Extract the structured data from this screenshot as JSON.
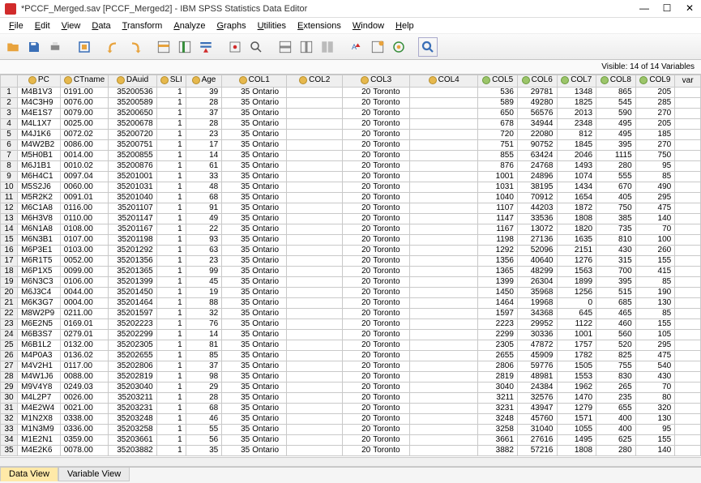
{
  "window": {
    "title": "*PCCF_Merged.sav [PCCF_Merged2] - IBM SPSS Statistics Data Editor"
  },
  "menu": [
    "File",
    "Edit",
    "View",
    "Data",
    "Transform",
    "Analyze",
    "Graphs",
    "Utilities",
    "Extensions",
    "Window",
    "Help"
  ],
  "visible_label": "Visible: 14 of 14 Variables",
  "tabs": {
    "data_view": "Data View",
    "var_view": "Variable View"
  },
  "columns": [
    {
      "key": "PC",
      "label": "PC",
      "type": "nom",
      "width": 55,
      "align": "txt"
    },
    {
      "key": "CTname",
      "label": "CTname",
      "type": "nom",
      "width": 60,
      "align": "txt"
    },
    {
      "key": "DAuid",
      "label": "DAuid",
      "type": "nom",
      "width": 65,
      "align": "num"
    },
    {
      "key": "SLI",
      "label": "SLI",
      "type": "nom",
      "width": 30,
      "align": "num"
    },
    {
      "key": "Age",
      "label": "Age",
      "type": "nom",
      "width": 50,
      "align": "num"
    },
    {
      "key": "COL1",
      "label": "COL1",
      "type": "nom",
      "width": 85,
      "align": "txt"
    },
    {
      "key": "COL2",
      "label": "COL2",
      "type": "nom",
      "width": 90,
      "align": "num"
    },
    {
      "key": "COL3",
      "label": "COL3",
      "type": "nom",
      "width": 90,
      "align": "txt"
    },
    {
      "key": "COL4",
      "label": "COL4",
      "type": "nom",
      "width": 120,
      "align": "num"
    },
    {
      "key": "COL5",
      "label": "COL5",
      "type": "scale",
      "width": 50,
      "align": "num"
    },
    {
      "key": "COL6",
      "label": "COL6",
      "type": "scale",
      "width": 50,
      "align": "num"
    },
    {
      "key": "COL7",
      "label": "COL7",
      "type": "scale",
      "width": 50,
      "align": "num"
    },
    {
      "key": "COL8",
      "label": "COL8",
      "type": "scale",
      "width": 50,
      "align": "num"
    },
    {
      "key": "COL9",
      "label": "COL9",
      "type": "scale",
      "width": 50,
      "align": "num"
    },
    {
      "key": "var",
      "label": "var",
      "type": "",
      "width": 40,
      "align": "txt"
    }
  ],
  "rows": [
    {
      "PC": "M4B1V3",
      "CTname": "0191.00",
      "DAuid": "35200536",
      "SLI": "1",
      "Age": "39",
      "COL1": "35 Ontario",
      "COL2": "",
      "COL3": "20 Toronto",
      "COL4": "",
      "COL5": "536",
      "COL6": "29781",
      "COL7": "1348",
      "COL8": "865",
      "COL9": "205"
    },
    {
      "PC": "M4C3H9",
      "CTname": "0076.00",
      "DAuid": "35200589",
      "SLI": "1",
      "Age": "28",
      "COL1": "35 Ontario",
      "COL2": "",
      "COL3": "20 Toronto",
      "COL4": "",
      "COL5": "589",
      "COL6": "49280",
      "COL7": "1825",
      "COL8": "545",
      "COL9": "285"
    },
    {
      "PC": "M4E1S7",
      "CTname": "0079.00",
      "DAuid": "35200650",
      "SLI": "1",
      "Age": "37",
      "COL1": "35 Ontario",
      "COL2": "",
      "COL3": "20 Toronto",
      "COL4": "",
      "COL5": "650",
      "COL6": "56576",
      "COL7": "2013",
      "COL8": "590",
      "COL9": "270"
    },
    {
      "PC": "M4L1X7",
      "CTname": "0025.00",
      "DAuid": "35200678",
      "SLI": "1",
      "Age": "28",
      "COL1": "35 Ontario",
      "COL2": "",
      "COL3": "20 Toronto",
      "COL4": "",
      "COL5": "678",
      "COL6": "34944",
      "COL7": "2348",
      "COL8": "495",
      "COL9": "205"
    },
    {
      "PC": "M4J1K6",
      "CTname": "0072.02",
      "DAuid": "35200720",
      "SLI": "1",
      "Age": "23",
      "COL1": "35 Ontario",
      "COL2": "",
      "COL3": "20 Toronto",
      "COL4": "",
      "COL5": "720",
      "COL6": "22080",
      "COL7": "812",
      "COL8": "495",
      "COL9": "185"
    },
    {
      "PC": "M4W2B2",
      "CTname": "0086.00",
      "DAuid": "35200751",
      "SLI": "1",
      "Age": "17",
      "COL1": "35 Ontario",
      "COL2": "",
      "COL3": "20 Toronto",
      "COL4": "",
      "COL5": "751",
      "COL6": "90752",
      "COL7": "1845",
      "COL8": "395",
      "COL9": "270"
    },
    {
      "PC": "M5H0B1",
      "CTname": "0014.00",
      "DAuid": "35200855",
      "SLI": "1",
      "Age": "14",
      "COL1": "35 Ontario",
      "COL2": "",
      "COL3": "20 Toronto",
      "COL4": "",
      "COL5": "855",
      "COL6": "63424",
      "COL7": "2046",
      "COL8": "1115",
      "COL9": "750"
    },
    {
      "PC": "M6J1B1",
      "CTname": "0010.02",
      "DAuid": "35200876",
      "SLI": "1",
      "Age": "61",
      "COL1": "35 Ontario",
      "COL2": "",
      "COL3": "20 Toronto",
      "COL4": "",
      "COL5": "876",
      "COL6": "24768",
      "COL7": "1493",
      "COL8": "280",
      "COL9": "95"
    },
    {
      "PC": "M6H4C1",
      "CTname": "0097.04",
      "DAuid": "35201001",
      "SLI": "1",
      "Age": "33",
      "COL1": "35 Ontario",
      "COL2": "",
      "COL3": "20 Toronto",
      "COL4": "",
      "COL5": "1001",
      "COL6": "24896",
      "COL7": "1074",
      "COL8": "555",
      "COL9": "85"
    },
    {
      "PC": "M5S2J6",
      "CTname": "0060.00",
      "DAuid": "35201031",
      "SLI": "1",
      "Age": "48",
      "COL1": "35 Ontario",
      "COL2": "",
      "COL3": "20 Toronto",
      "COL4": "",
      "COL5": "1031",
      "COL6": "38195",
      "COL7": "1434",
      "COL8": "670",
      "COL9": "490"
    },
    {
      "PC": "M5R2K2",
      "CTname": "0091.01",
      "DAuid": "35201040",
      "SLI": "1",
      "Age": "68",
      "COL1": "35 Ontario",
      "COL2": "",
      "COL3": "20 Toronto",
      "COL4": "",
      "COL5": "1040",
      "COL6": "70912",
      "COL7": "1654",
      "COL8": "405",
      "COL9": "295"
    },
    {
      "PC": "M6C1A8",
      "CTname": "0116.00",
      "DAuid": "35201107",
      "SLI": "1",
      "Age": "91",
      "COL1": "35 Ontario",
      "COL2": "",
      "COL3": "20 Toronto",
      "COL4": "",
      "COL5": "1107",
      "COL6": "44203",
      "COL7": "1872",
      "COL8": "750",
      "COL9": "475"
    },
    {
      "PC": "M6H3V8",
      "CTname": "0110.00",
      "DAuid": "35201147",
      "SLI": "1",
      "Age": "49",
      "COL1": "35 Ontario",
      "COL2": "",
      "COL3": "20 Toronto",
      "COL4": "",
      "COL5": "1147",
      "COL6": "33536",
      "COL7": "1808",
      "COL8": "385",
      "COL9": "140"
    },
    {
      "PC": "M6N1A8",
      "CTname": "0108.00",
      "DAuid": "35201167",
      "SLI": "1",
      "Age": "22",
      "COL1": "35 Ontario",
      "COL2": "",
      "COL3": "20 Toronto",
      "COL4": "",
      "COL5": "1167",
      "COL6": "13072",
      "COL7": "1820",
      "COL8": "735",
      "COL9": "70"
    },
    {
      "PC": "M6N3B1",
      "CTname": "0107.00",
      "DAuid": "35201198",
      "SLI": "1",
      "Age": "93",
      "COL1": "35 Ontario",
      "COL2": "",
      "COL3": "20 Toronto",
      "COL4": "",
      "COL5": "1198",
      "COL6": "27136",
      "COL7": "1635",
      "COL8": "810",
      "COL9": "100"
    },
    {
      "PC": "M6P3E1",
      "CTname": "0103.00",
      "DAuid": "35201292",
      "SLI": "1",
      "Age": "63",
      "COL1": "35 Ontario",
      "COL2": "",
      "COL3": "20 Toronto",
      "COL4": "",
      "COL5": "1292",
      "COL6": "52096",
      "COL7": "2151",
      "COL8": "430",
      "COL9": "260"
    },
    {
      "PC": "M6R1T5",
      "CTname": "0052.00",
      "DAuid": "35201356",
      "SLI": "1",
      "Age": "23",
      "COL1": "35 Ontario",
      "COL2": "",
      "COL3": "20 Toronto",
      "COL4": "",
      "COL5": "1356",
      "COL6": "40640",
      "COL7": "1276",
      "COL8": "315",
      "COL9": "155"
    },
    {
      "PC": "M6P1X5",
      "CTname": "0099.00",
      "DAuid": "35201365",
      "SLI": "1",
      "Age": "99",
      "COL1": "35 Ontario",
      "COL2": "",
      "COL3": "20 Toronto",
      "COL4": "",
      "COL5": "1365",
      "COL6": "48299",
      "COL7": "1563",
      "COL8": "700",
      "COL9": "415"
    },
    {
      "PC": "M6N3C3",
      "CTname": "0106.00",
      "DAuid": "35201399",
      "SLI": "1",
      "Age": "45",
      "COL1": "35 Ontario",
      "COL2": "",
      "COL3": "20 Toronto",
      "COL4": "",
      "COL5": "1399",
      "COL6": "26304",
      "COL7": "1899",
      "COL8": "395",
      "COL9": "85"
    },
    {
      "PC": "M6J3C4",
      "CTname": "0044.00",
      "DAuid": "35201450",
      "SLI": "1",
      "Age": "19",
      "COL1": "35 Ontario",
      "COL2": "",
      "COL3": "20 Toronto",
      "COL4": "",
      "COL5": "1450",
      "COL6": "35968",
      "COL7": "1256",
      "COL8": "515",
      "COL9": "190"
    },
    {
      "PC": "M6K3G7",
      "CTname": "0004.00",
      "DAuid": "35201464",
      "SLI": "1",
      "Age": "88",
      "COL1": "35 Ontario",
      "COL2": "",
      "COL3": "20 Toronto",
      "COL4": "",
      "COL5": "1464",
      "COL6": "19968",
      "COL7": "0",
      "COL8": "685",
      "COL9": "130"
    },
    {
      "PC": "M8W2P9",
      "CTname": "0211.00",
      "DAuid": "35201597",
      "SLI": "1",
      "Age": "32",
      "COL1": "35 Ontario",
      "COL2": "",
      "COL3": "20 Toronto",
      "COL4": "",
      "COL5": "1597",
      "COL6": "34368",
      "COL7": "645",
      "COL8": "465",
      "COL9": "85"
    },
    {
      "PC": "M6E2N5",
      "CTname": "0169.01",
      "DAuid": "35202223",
      "SLI": "1",
      "Age": "76",
      "COL1": "35 Ontario",
      "COL2": "",
      "COL3": "20 Toronto",
      "COL4": "",
      "COL5": "2223",
      "COL6": "29952",
      "COL7": "1122",
      "COL8": "460",
      "COL9": "155"
    },
    {
      "PC": "M6B3S7",
      "CTname": "0279.01",
      "DAuid": "35202299",
      "SLI": "1",
      "Age": "14",
      "COL1": "35 Ontario",
      "COL2": "",
      "COL3": "20 Toronto",
      "COL4": "",
      "COL5": "2299",
      "COL6": "30336",
      "COL7": "1001",
      "COL8": "560",
      "COL9": "105"
    },
    {
      "PC": "M6B1L2",
      "CTname": "0132.00",
      "DAuid": "35202305",
      "SLI": "1",
      "Age": "81",
      "COL1": "35 Ontario",
      "COL2": "",
      "COL3": "20 Toronto",
      "COL4": "",
      "COL5": "2305",
      "COL6": "47872",
      "COL7": "1757",
      "COL8": "520",
      "COL9": "295"
    },
    {
      "PC": "M4P0A3",
      "CTname": "0136.02",
      "DAuid": "35202655",
      "SLI": "1",
      "Age": "85",
      "COL1": "35 Ontario",
      "COL2": "",
      "COL3": "20 Toronto",
      "COL4": "",
      "COL5": "2655",
      "COL6": "45909",
      "COL7": "1782",
      "COL8": "825",
      "COL9": "475"
    },
    {
      "PC": "M4V2H1",
      "CTname": "0117.00",
      "DAuid": "35202806",
      "SLI": "1",
      "Age": "37",
      "COL1": "35 Ontario",
      "COL2": "",
      "COL3": "20 Toronto",
      "COL4": "",
      "COL5": "2806",
      "COL6": "59776",
      "COL7": "1505",
      "COL8": "755",
      "COL9": "540"
    },
    {
      "PC": "M4W1J6",
      "CTname": "0088.00",
      "DAuid": "35202819",
      "SLI": "1",
      "Age": "98",
      "COL1": "35 Ontario",
      "COL2": "",
      "COL3": "20 Toronto",
      "COL4": "",
      "COL5": "2819",
      "COL6": "48981",
      "COL7": "1553",
      "COL8": "830",
      "COL9": "430"
    },
    {
      "PC": "M9V4Y8",
      "CTname": "0249.03",
      "DAuid": "35203040",
      "SLI": "1",
      "Age": "29",
      "COL1": "35 Ontario",
      "COL2": "",
      "COL3": "20 Toronto",
      "COL4": "",
      "COL5": "3040",
      "COL6": "24384",
      "COL7": "1962",
      "COL8": "265",
      "COL9": "70"
    },
    {
      "PC": "M4L2P7",
      "CTname": "0026.00",
      "DAuid": "35203211",
      "SLI": "1",
      "Age": "28",
      "COL1": "35 Ontario",
      "COL2": "",
      "COL3": "20 Toronto",
      "COL4": "",
      "COL5": "3211",
      "COL6": "32576",
      "COL7": "1470",
      "COL8": "235",
      "COL9": "80"
    },
    {
      "PC": "M4E2W4",
      "CTname": "0021.00",
      "DAuid": "35203231",
      "SLI": "1",
      "Age": "68",
      "COL1": "35 Ontario",
      "COL2": "",
      "COL3": "20 Toronto",
      "COL4": "",
      "COL5": "3231",
      "COL6": "43947",
      "COL7": "1279",
      "COL8": "655",
      "COL9": "320"
    },
    {
      "PC": "M1N2X8",
      "CTname": "0338.00",
      "DAuid": "35203248",
      "SLI": "1",
      "Age": "46",
      "COL1": "35 Ontario",
      "COL2": "",
      "COL3": "20 Toronto",
      "COL4": "",
      "COL5": "3248",
      "COL6": "45760",
      "COL7": "1571",
      "COL8": "400",
      "COL9": "130"
    },
    {
      "PC": "M1N3M9",
      "CTname": "0336.00",
      "DAuid": "35203258",
      "SLI": "1",
      "Age": "55",
      "COL1": "35 Ontario",
      "COL2": "",
      "COL3": "20 Toronto",
      "COL4": "",
      "COL5": "3258",
      "COL6": "31040",
      "COL7": "1055",
      "COL8": "400",
      "COL9": "95"
    },
    {
      "PC": "M1E2N1",
      "CTname": "0359.00",
      "DAuid": "35203661",
      "SLI": "1",
      "Age": "56",
      "COL1": "35 Ontario",
      "COL2": "",
      "COL3": "20 Toronto",
      "COL4": "",
      "COL5": "3661",
      "COL6": "27616",
      "COL7": "1495",
      "COL8": "625",
      "COL9": "155"
    },
    {
      "PC": "M4E2K6",
      "CTname": "0078.00",
      "DAuid": "35203882",
      "SLI": "1",
      "Age": "35",
      "COL1": "35 Ontario",
      "COL2": "",
      "COL3": "20 Toronto",
      "COL4": "",
      "COL5": "3882",
      "COL6": "57216",
      "COL7": "1808",
      "COL8": "280",
      "COL9": "140"
    }
  ]
}
